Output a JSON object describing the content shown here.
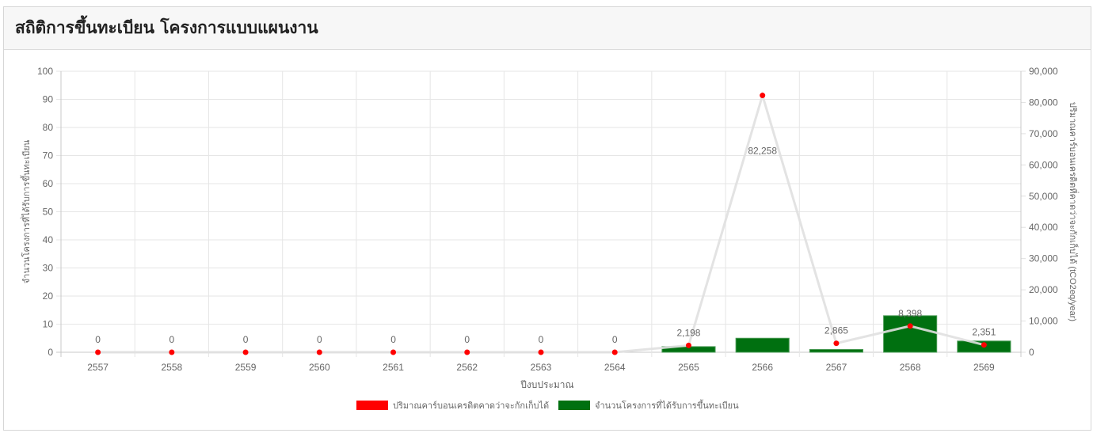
{
  "panel": {
    "title": "สถิติการขึ้นทะเบียน โครงการแบบแผนงาน"
  },
  "chart_data": {
    "type": "bar",
    "title": "",
    "categories": [
      "2557",
      "2558",
      "2559",
      "2560",
      "2561",
      "2562",
      "2563",
      "2564",
      "2565",
      "2566",
      "2567",
      "2568",
      "2569"
    ],
    "xlabel": "ปีงบประมาณ",
    "ylabel": "จำนวนโครงการที่ได้รับการขึ้นทะเบียน",
    "y2label": "ปริมาณคาร์บอนเครดิตที่คาดว่าจะกักเก็บได้ (tCO2eq/year)",
    "ylim": [
      0,
      100
    ],
    "y2lim": [
      0,
      90000
    ],
    "yticks": [
      "0",
      "10",
      "20",
      "30",
      "40",
      "50",
      "60",
      "70",
      "80",
      "90",
      "100"
    ],
    "y2ticks": [
      "0",
      "10,000",
      "20,000",
      "30,000",
      "40,000",
      "50,000",
      "60,000",
      "70,000",
      "80,000",
      "90,000"
    ],
    "grid": true,
    "legend_position": "bottom",
    "series": [
      {
        "name": "ปริมาณคาร์บอนเครดิตคาดว่าจะกักเก็บได้",
        "type": "line",
        "axis": "right",
        "color": "#ff0000",
        "line_color": "#e0e0e0",
        "values": [
          0,
          0,
          0,
          0,
          0,
          0,
          0,
          0,
          2198,
          82258,
          2865,
          8398,
          2351
        ],
        "labels": [
          "0",
          "0",
          "0",
          "0",
          "0",
          "0",
          "0",
          "0",
          "2,198",
          "82,258",
          "2,865",
          "8,398",
          "2,351"
        ]
      },
      {
        "name": "จำนวนโครงการที่ได้รับการขึ้นทะเบียน",
        "type": "bar",
        "axis": "left",
        "color": "#007010",
        "values": [
          0,
          0,
          0,
          0,
          0,
          0,
          0,
          0,
          2,
          5,
          1,
          13,
          4
        ]
      }
    ]
  }
}
